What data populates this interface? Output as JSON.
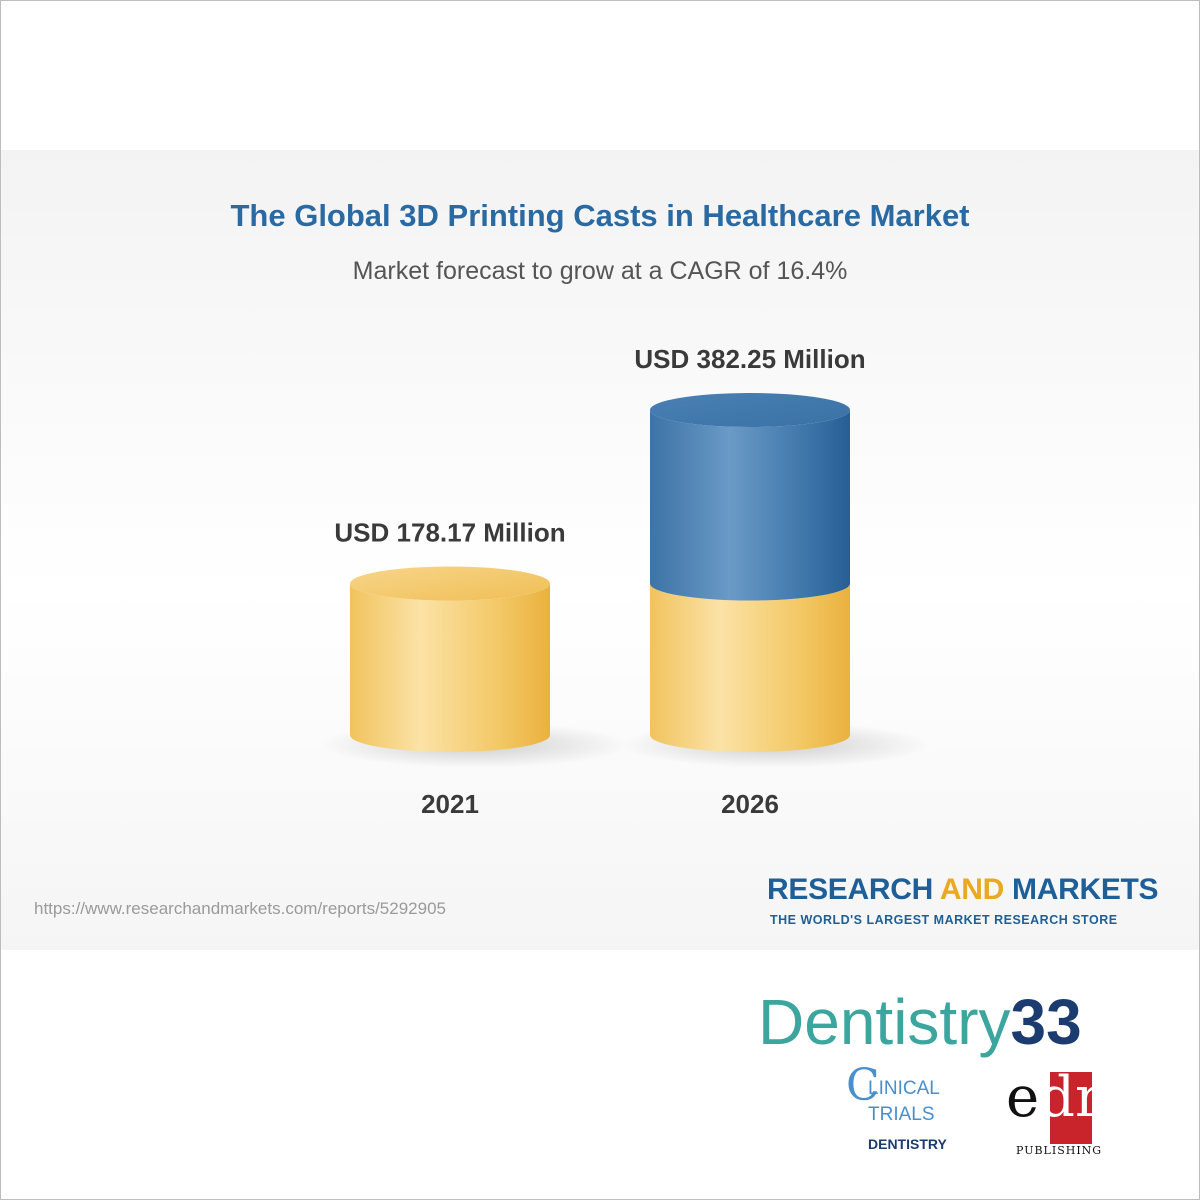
{
  "chart_data": {
    "type": "bar",
    "title": "The Global 3D Printing Casts in Healthcare Market",
    "subtitle": "Market forecast to grow at a CAGR of 16.4%",
    "categories": [
      "2021",
      "2026"
    ],
    "values": [
      178.17,
      382.25
    ],
    "data_labels": [
      "USD 178.17 Million",
      "USD 382.25 Million"
    ],
    "ylim": [
      0,
      382.25
    ],
    "grid": false
  },
  "source": {
    "url": "https://www.researchandmarkets.com/reports/5292905"
  },
  "brand": {
    "name_part1": "RESEARCH ",
    "name_part2": "AND",
    "name_part3": " MARKETS",
    "tagline": "THE WORLD'S LARGEST MARKET RESEARCH STORE"
  },
  "logos": {
    "dentistry_word": "Dentistry",
    "dentistry_num": "33",
    "ctd_c": "C",
    "ctd_line1": "LINICAL",
    "ctd_line2": "TRIALS",
    "ctd_line3": "DENTISTRY",
    "edra_mark_1": "e",
    "edra_mark_2": "dra",
    "edra_sub": "PUBLISHING"
  },
  "colors": {
    "gold": "#f2c25a",
    "blue": "#3f79ad",
    "title": "#2a6aa3"
  }
}
